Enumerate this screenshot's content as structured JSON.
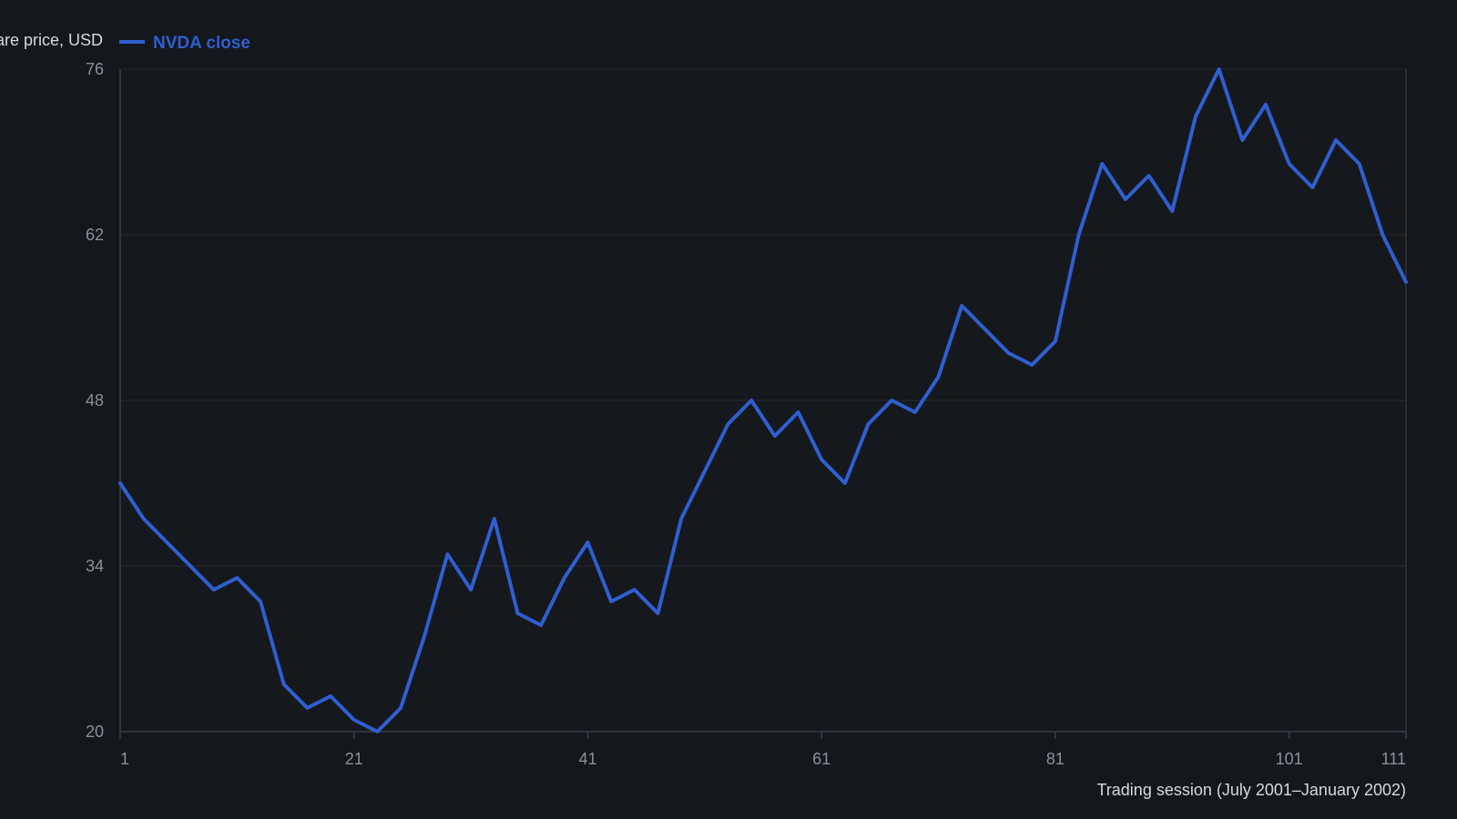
{
  "colors": {
    "background": "#14171c",
    "plot_background": "#15181d",
    "grid": "#262a31",
    "axis": "#3a3f47",
    "series": "#2f5fd0",
    "tick_text": "#8b9199",
    "label_text": "#d6d9de"
  },
  "chart_data": {
    "type": "line",
    "title": "",
    "ylabel": "Share price, USD",
    "xlabel": "Trading session (July 2001–January 2002)",
    "x_ticks": [
      1,
      21,
      41,
      61,
      81,
      101,
      111
    ],
    "y_ticks": [
      20,
      34,
      48,
      62,
      76
    ],
    "xlim": [
      1,
      111
    ],
    "ylim": [
      20,
      76
    ],
    "grid": true,
    "legend_position": "top-left",
    "series": [
      {
        "name": "NVDA close",
        "x": [
          1,
          3,
          5,
          7,
          9,
          11,
          13,
          15,
          17,
          19,
          21,
          23,
          25,
          27,
          29,
          31,
          33,
          35,
          37,
          39,
          41,
          43,
          45,
          47,
          49,
          51,
          53,
          55,
          57,
          59,
          61,
          63,
          65,
          67,
          69,
          71,
          73,
          75,
          77,
          79,
          81,
          83,
          85,
          87,
          89,
          91,
          93,
          95,
          97,
          99,
          101,
          103,
          105,
          107,
          109,
          111
        ],
        "values": [
          41,
          38,
          36,
          34,
          32,
          33,
          31,
          24,
          22,
          23,
          21,
          20,
          22,
          28,
          35,
          32,
          38,
          30,
          29,
          33,
          36,
          31,
          32,
          30,
          38,
          42,
          46,
          48,
          45,
          47,
          43,
          41,
          46,
          48,
          47,
          50,
          56,
          54,
          52,
          51,
          53,
          62,
          68,
          65,
          67,
          64,
          72,
          76,
          70,
          73,
          68,
          66,
          70,
          68,
          62,
          58
        ]
      }
    ]
  }
}
